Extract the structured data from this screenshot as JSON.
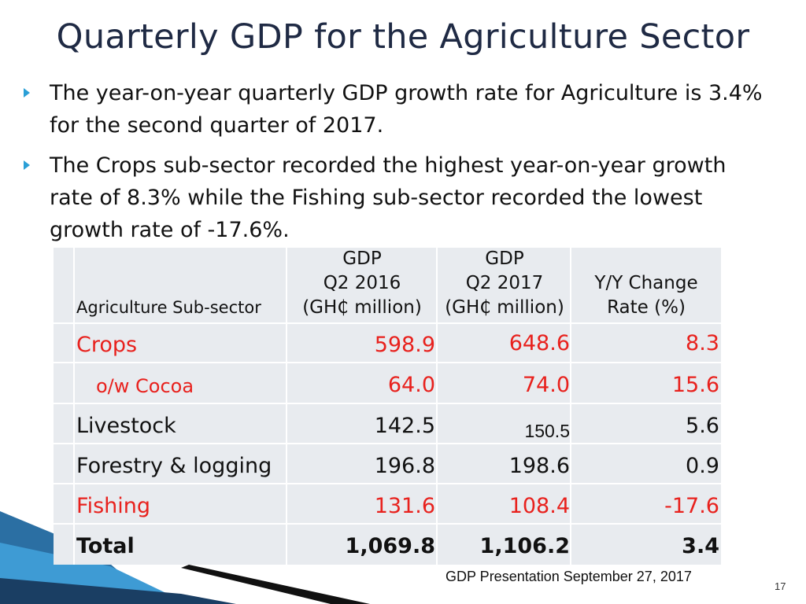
{
  "slide": {
    "title": "Quarterly GDP for the Agriculture Sector",
    "bullets": [
      "The year-on-year quarterly GDP growth rate for Agriculture is 3.4% for the second quarter of 2017.",
      "The Crops sub-sector recorded the highest year-on-year growth rate of 8.3% while the Fishing sub-sector recorded the lowest growth rate of -17.6%."
    ],
    "footer": "GDP Presentation September 27, 2017",
    "page_number": "17",
    "accent_color": "#2a9fd6",
    "highlight_color": "#e8211d"
  },
  "table": {
    "headers": {
      "subsector": "Agriculture Sub-sector",
      "q2_2016": [
        "GDP",
        "Q2 2016",
        "(GH₵ million)"
      ],
      "q2_2017": [
        "GDP",
        "Q2 2017",
        "(GH₵ million)"
      ],
      "change": [
        "Y/Y Change",
        "Rate (%)"
      ]
    },
    "rows": [
      {
        "name": "Crops",
        "q2_2016": "598.9",
        "q2_2017": "648.6",
        "change": "8.3"
      },
      {
        "name": "o/w Cocoa",
        "q2_2016": "64.0",
        "q2_2017": "74.0",
        "change": "15.6"
      },
      {
        "name": "Livestock",
        "q2_2016": "142.5",
        "q2_2017": "150.5",
        "change": "5.6"
      },
      {
        "name": "Forestry & logging",
        "q2_2016": "196.8",
        "q2_2017": "198.6",
        "change": "0.9"
      },
      {
        "name": "Fishing",
        "q2_2016": "131.6",
        "q2_2017": "108.4",
        "change": "-17.6"
      },
      {
        "name": "Total",
        "q2_2016": "1,069.8",
        "q2_2017": "1,106.2",
        "change": "3.4"
      }
    ]
  }
}
